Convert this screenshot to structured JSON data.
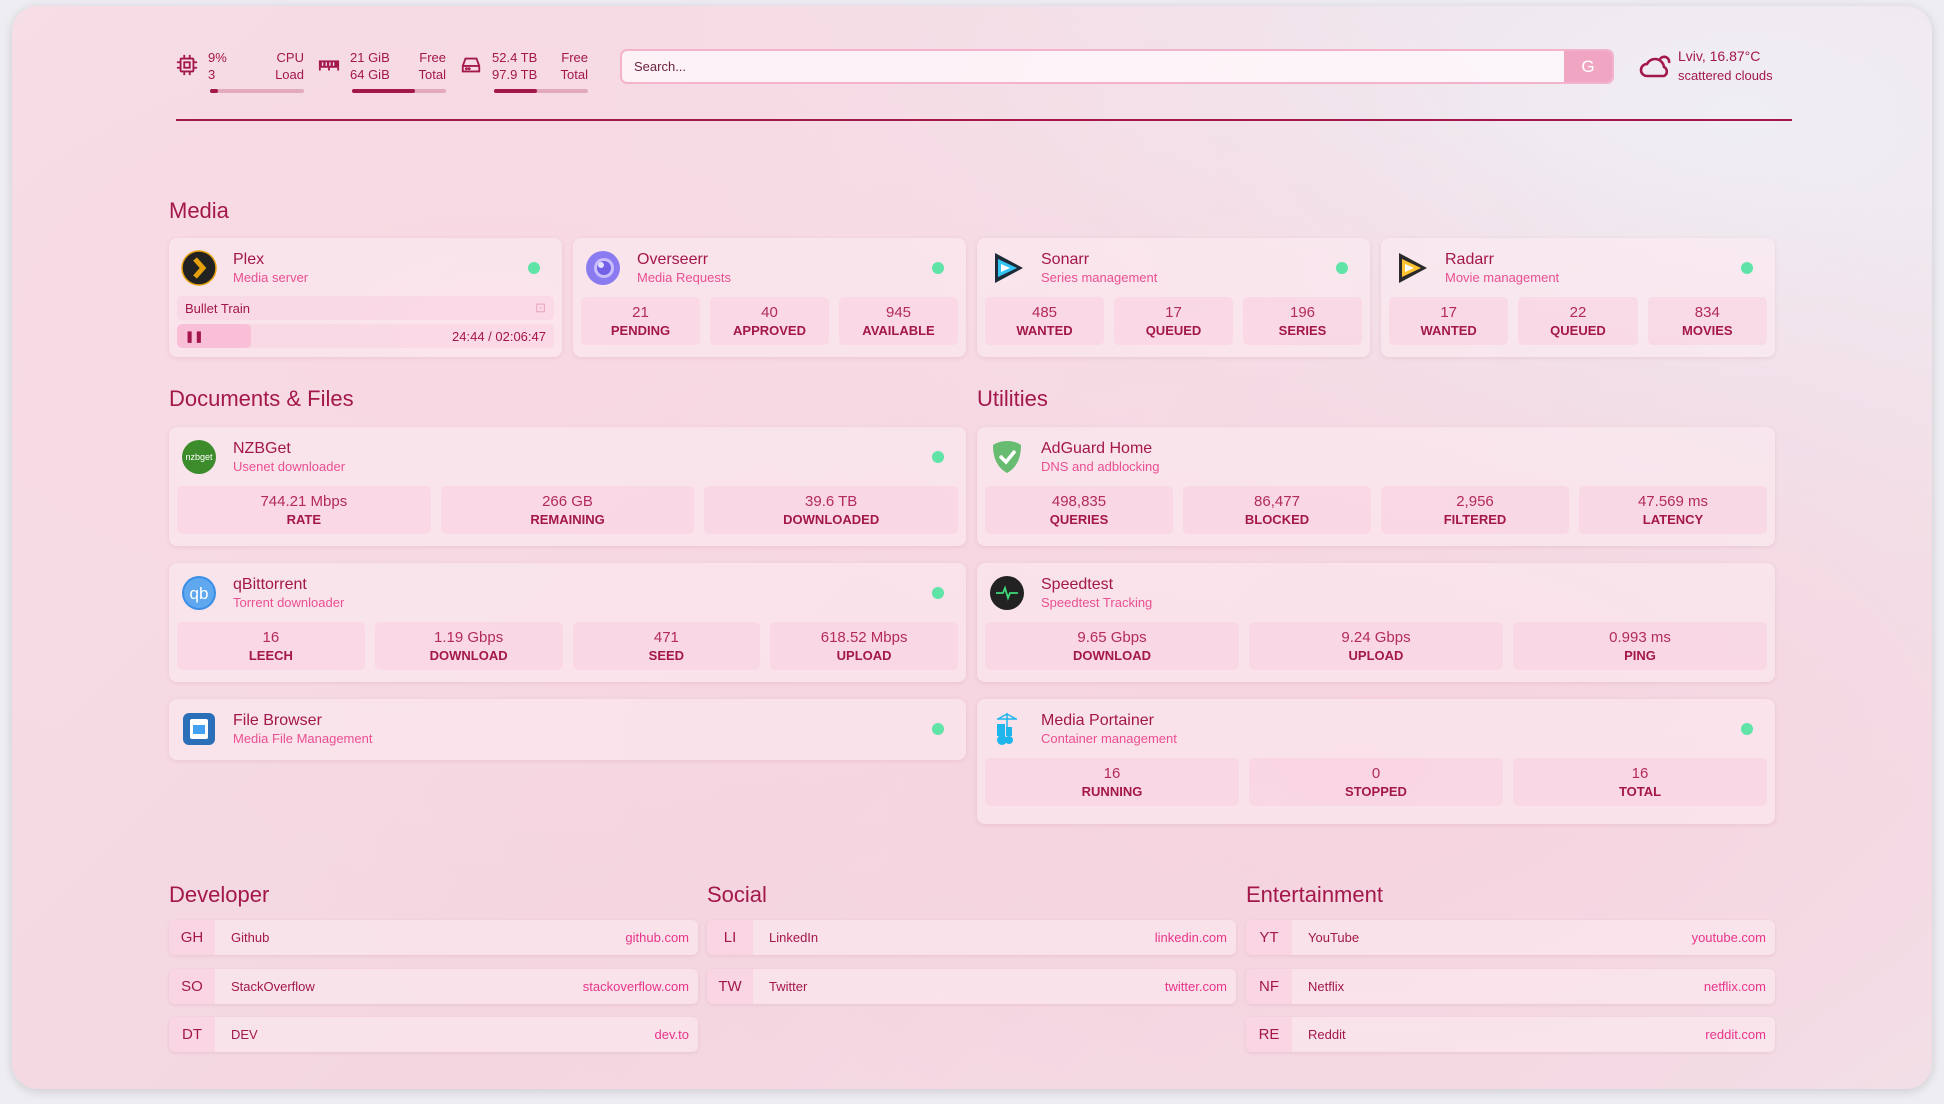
{
  "colors": {
    "accent": "#a3174b",
    "subtitle": "#ea4f91",
    "status_online": "#5fe3a7"
  },
  "header": {
    "cpu": {
      "icon": "cpu-icon",
      "usage": "9%",
      "load": "3",
      "label1": "CPU",
      "label2": "Load",
      "percent": 9
    },
    "memory": {
      "icon": "memory-icon",
      "free": "21 GiB",
      "total": "64 GiB",
      "label1": "Free",
      "label2": "Total",
      "percent": 67
    },
    "disk": {
      "icon": "disk-icon",
      "free": "52.4 TB",
      "total": "97.9 TB",
      "label1": "Free",
      "label2": "Total",
      "percent": 46
    },
    "search": {
      "placeholder": "Search...",
      "button": "G"
    },
    "weather": {
      "icon": "cloud-sun-icon",
      "location": "Lviv, 16.87°C",
      "condition": "scattered clouds"
    }
  },
  "sections": {
    "media": "Media",
    "documents": "Documents & Files",
    "utilities": "Utilities",
    "developer": "Developer",
    "social": "Social",
    "entertainment": "Entertainment"
  },
  "services": {
    "plex": {
      "name": "Plex",
      "desc": "Media server",
      "icon": "plex-icon",
      "status": "online",
      "now_playing": "Bullet Train",
      "time": "24:44 / 02:06:47",
      "progress": 0.195
    },
    "overseerr": {
      "name": "Overseerr",
      "desc": "Media Requests",
      "icon": "overseerr-icon",
      "status": "online",
      "stats": [
        {
          "v": "21",
          "l": "PENDING"
        },
        {
          "v": "40",
          "l": "APPROVED"
        },
        {
          "v": "945",
          "l": "AVAILABLE"
        }
      ]
    },
    "sonarr": {
      "name": "Sonarr",
      "desc": "Series management",
      "icon": "sonarr-icon",
      "status": "online",
      "stats": [
        {
          "v": "485",
          "l": "WANTED"
        },
        {
          "v": "17",
          "l": "QUEUED"
        },
        {
          "v": "196",
          "l": "SERIES"
        }
      ]
    },
    "radarr": {
      "name": "Radarr",
      "desc": "Movie management",
      "icon": "radarr-icon",
      "status": "online",
      "stats": [
        {
          "v": "17",
          "l": "WANTED"
        },
        {
          "v": "22",
          "l": "QUEUED"
        },
        {
          "v": "834",
          "l": "MOVIES"
        }
      ]
    },
    "nzbget": {
      "name": "NZBGet",
      "desc": "Usenet downloader",
      "icon": "nzbget-icon",
      "status": "online",
      "stats": [
        {
          "v": "744.21 Mbps",
          "l": "RATE"
        },
        {
          "v": "266 GB",
          "l": "REMAINING"
        },
        {
          "v": "39.6 TB",
          "l": "DOWNLOADED"
        }
      ]
    },
    "qbittorrent": {
      "name": "qBittorrent",
      "desc": "Torrent downloader",
      "icon": "qbittorrent-icon",
      "status": "online",
      "stats": [
        {
          "v": "16",
          "l": "LEECH"
        },
        {
          "v": "1.19 Gbps",
          "l": "DOWNLOAD"
        },
        {
          "v": "471",
          "l": "SEED"
        },
        {
          "v": "618.52 Mbps",
          "l": "UPLOAD"
        }
      ]
    },
    "filebrowser": {
      "name": "File Browser",
      "desc": "Media File Management",
      "icon": "file-browser-icon",
      "status": "online"
    },
    "adguard": {
      "name": "AdGuard Home",
      "desc": "DNS and adblocking",
      "icon": "adguard-icon",
      "stats": [
        {
          "v": "498,835",
          "l": "QUERIES"
        },
        {
          "v": "86,477",
          "l": "BLOCKED"
        },
        {
          "v": "2,956",
          "l": "FILTERED"
        },
        {
          "v": "47.569 ms",
          "l": "LATENCY"
        }
      ]
    },
    "speedtest": {
      "name": "Speedtest",
      "desc": "Speedtest Tracking",
      "icon": "speedtest-icon",
      "stats": [
        {
          "v": "9.65 Gbps",
          "l": "DOWNLOAD"
        },
        {
          "v": "9.24 Gbps",
          "l": "UPLOAD"
        },
        {
          "v": "0.993 ms",
          "l": "PING"
        }
      ]
    },
    "portainer": {
      "name": "Media Portainer",
      "desc": "Container management",
      "icon": "portainer-icon",
      "status": "online",
      "stats": [
        {
          "v": "16",
          "l": "RUNNING"
        },
        {
          "v": "0",
          "l": "STOPPED"
        },
        {
          "v": "16",
          "l": "TOTAL"
        }
      ]
    }
  },
  "bookmarks": {
    "developer": [
      {
        "abbr": "GH",
        "name": "Github",
        "url": "github.com"
      },
      {
        "abbr": "SO",
        "name": "StackOverflow",
        "url": "stackoverflow.com"
      },
      {
        "abbr": "DT",
        "name": "DEV",
        "url": "dev.to"
      }
    ],
    "social": [
      {
        "abbr": "LI",
        "name": "LinkedIn",
        "url": "linkedin.com"
      },
      {
        "abbr": "TW",
        "name": "Twitter",
        "url": "twitter.com"
      }
    ],
    "entertainment": [
      {
        "abbr": "YT",
        "name": "YouTube",
        "url": "youtube.com"
      },
      {
        "abbr": "NF",
        "name": "Netflix",
        "url": "netflix.com"
      },
      {
        "abbr": "RE",
        "name": "Reddit",
        "url": "reddit.com"
      }
    ]
  }
}
